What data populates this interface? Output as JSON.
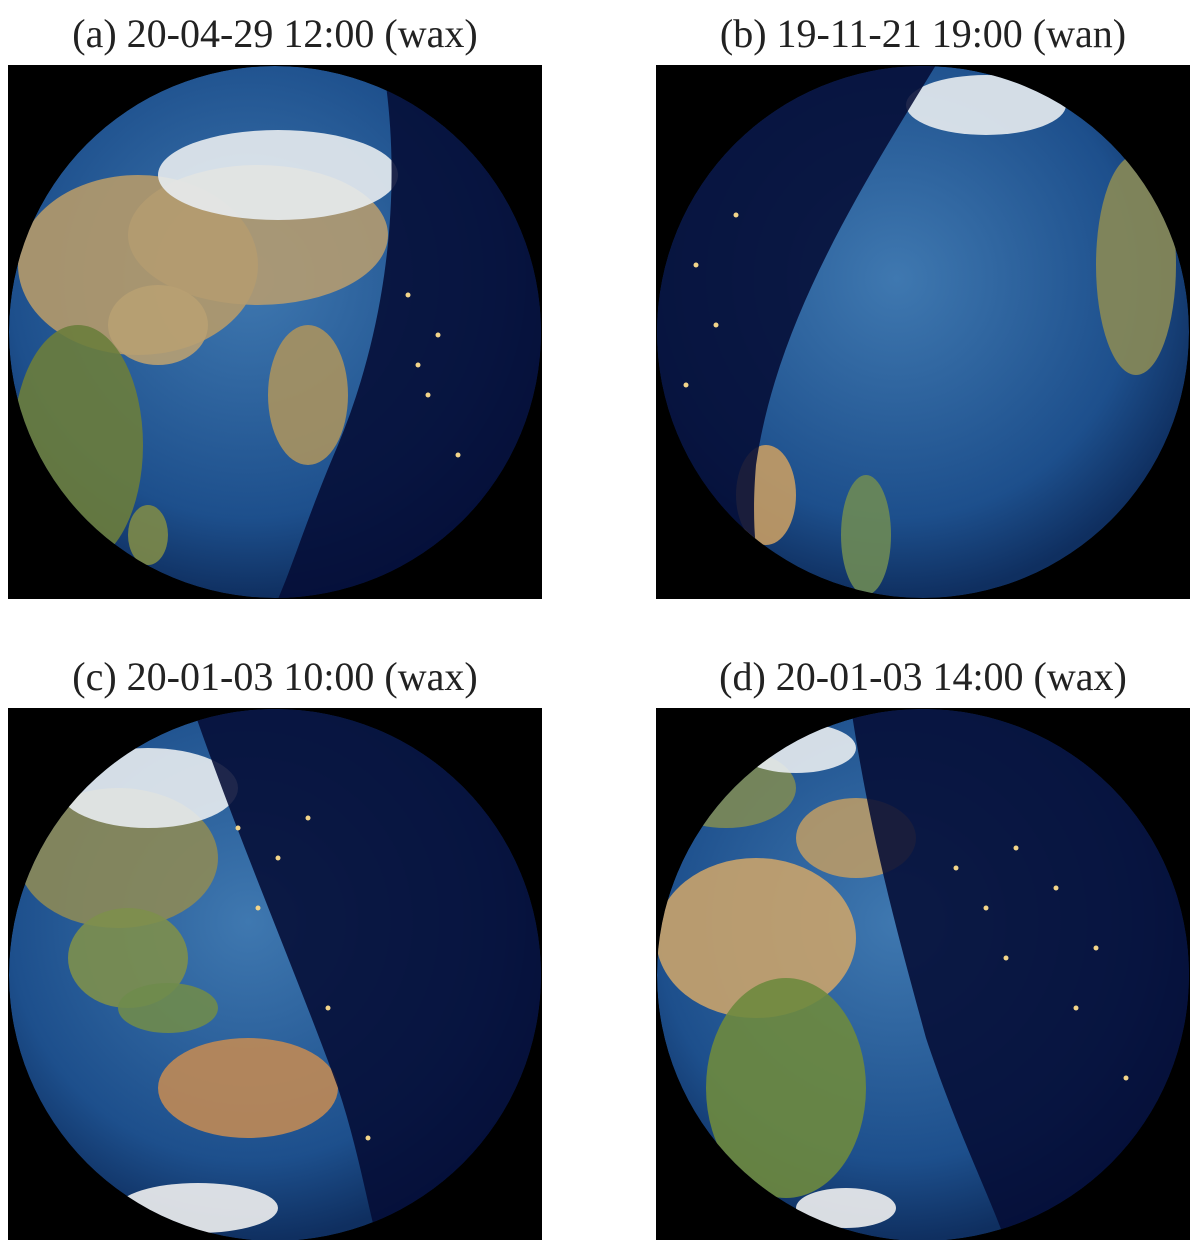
{
  "panels": [
    {
      "label": "(a) 20-04-29 12:00 (wax)"
    },
    {
      "label": "(b) 19-11-21 19:00 (wan)"
    },
    {
      "label": "(c) 20-01-03 10:00 (wax)"
    },
    {
      "label": "(d) 20-01-03 14:00 (wax)"
    }
  ]
}
